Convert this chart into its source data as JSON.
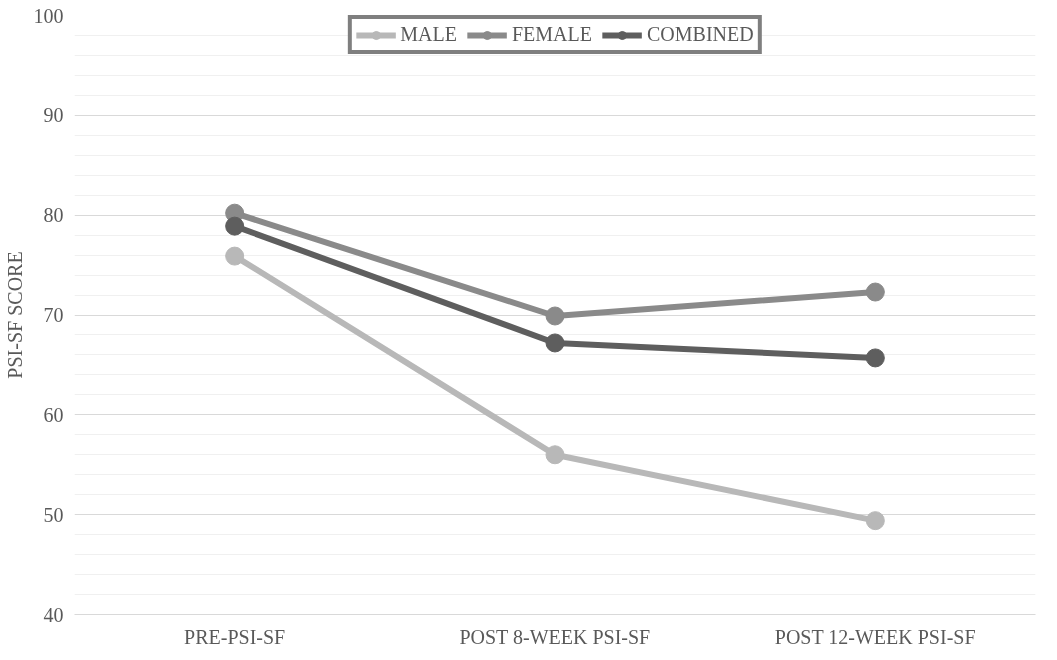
{
  "chart_data": {
    "type": "line",
    "ylabel": "PSI-SF SCORE",
    "categories": [
      "PRE-PSI-SF",
      "POST 8-WEEK PSI-SF",
      "POST 12-WEEK PSI-SF"
    ],
    "series": [
      {
        "name": "MALE",
        "color": "#b8b8b8",
        "values": [
          75.9,
          56.0,
          49.4
        ]
      },
      {
        "name": "FEMALE",
        "color": "#8a8a8a",
        "values": [
          80.2,
          69.9,
          72.3
        ]
      },
      {
        "name": "COMBINED",
        "color": "#5e5e5e",
        "values": [
          78.9,
          67.2,
          65.7
        ]
      }
    ],
    "ylim": [
      40,
      100
    ],
    "yticks": [
      40,
      50,
      60,
      70,
      80,
      90,
      100
    ],
    "grid": "y",
    "legend": "top",
    "marker": "circle",
    "line_style": "solid"
  }
}
